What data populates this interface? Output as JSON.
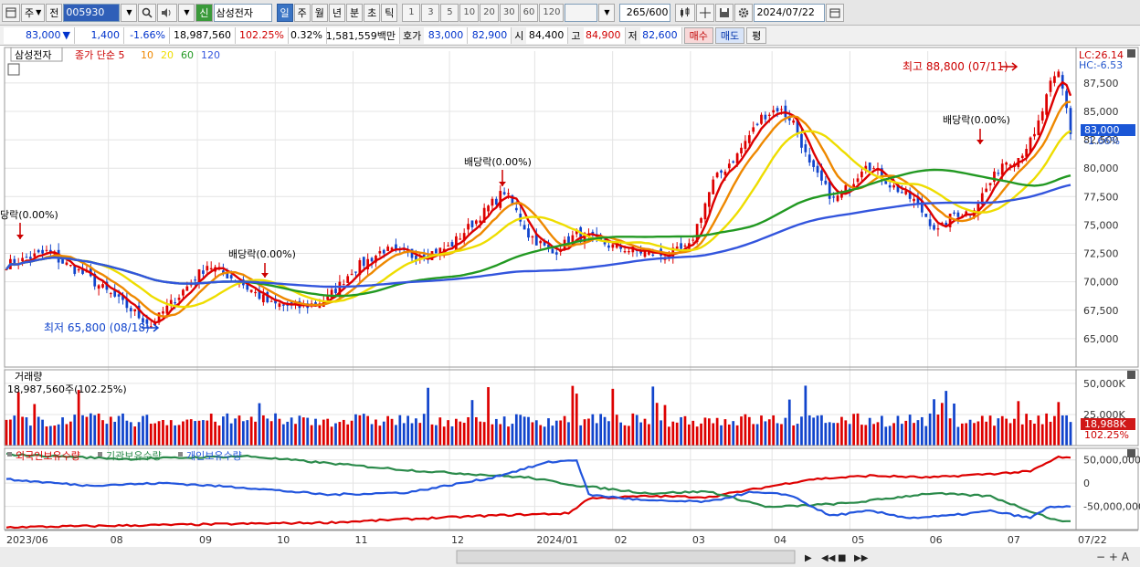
{
  "toolbar": {
    "period_type": "주",
    "prev_label": "전",
    "stock_code": "005930",
    "new_badge": "신",
    "stock_name": "삼성전자",
    "period_tabs": [
      "일",
      "주",
      "월",
      "년",
      "분",
      "초",
      "틱"
    ],
    "selected_period": "일",
    "intervals": [
      "1",
      "3",
      "5",
      "10",
      "20",
      "30",
      "60",
      "120"
    ],
    "count_value": "265",
    "count_max": "/600",
    "date_value": "2024/07/22"
  },
  "info": {
    "price": "83,000",
    "change": "1,400",
    "change_pct": "-1.66%",
    "volume": "18,987,560",
    "vol_ratio": "102.25%",
    "turnover": "0.32%",
    "amount": "1,581,559백만",
    "quote_label": "호가",
    "ask": "83,000",
    "bid": "82,900",
    "open_label": "시",
    "open": "84,400",
    "high_label": "고",
    "high": "84,900",
    "low_label": "저",
    "low": "82,600",
    "buy_label": "매수",
    "sell_label": "매도",
    "eval_label": "평"
  },
  "chart_data": {
    "type": "candlestick",
    "price_panel": {
      "title": "삼성전자",
      "legend_prefix": "종가 단순",
      "ma_periods": [
        "5",
        "10",
        "20",
        "60",
        "120"
      ],
      "ma_colors": [
        "#dd0000",
        "#ee8800",
        "#eedd00",
        "#229922",
        "#3355dd"
      ],
      "corner_lc": "LC:26.14",
      "corner_hc": "HC:-6.53",
      "yticks": [
        "87,500",
        "85,000",
        "82,500",
        "80,000",
        "77,500",
        "75,000",
        "72,500",
        "70,000",
        "67,500",
        "65,000"
      ],
      "ytick_values": [
        87500,
        85000,
        82500,
        80000,
        77500,
        75000,
        72500,
        70000,
        67500,
        65000
      ],
      "ylim": [
        62500,
        90300
      ],
      "current_price": "83,000",
      "current_pct": "-1.66%",
      "annotations": {
        "high": "최고 88,800 (07/11)",
        "low": "최저 65,800 (08/18)",
        "div1": "당락(0.00%)",
        "div2": "배당락(0.00%)",
        "div3": "배당락(0.00%)",
        "div4": "배당락(0.00%)"
      },
      "close_anchors": [
        [
          0,
          71500
        ],
        [
          10,
          72600
        ],
        [
          20,
          70500
        ],
        [
          30,
          67800
        ],
        [
          36,
          66200
        ],
        [
          44,
          69200
        ],
        [
          50,
          71500
        ],
        [
          58,
          70000
        ],
        [
          66,
          68000
        ],
        [
          74,
          67800
        ],
        [
          80,
          68500
        ],
        [
          86,
          71000
        ],
        [
          94,
          72800
        ],
        [
          102,
          72200
        ],
        [
          110,
          73000
        ],
        [
          118,
          75800
        ],
        [
          124,
          78000
        ],
        [
          130,
          74200
        ],
        [
          136,
          72500
        ],
        [
          142,
          74200
        ],
        [
          150,
          73200
        ],
        [
          158,
          72600
        ],
        [
          164,
          72300
        ],
        [
          170,
          73000
        ],
        [
          176,
          78800
        ],
        [
          182,
          81200
        ],
        [
          188,
          84500
        ],
        [
          192,
          85300
        ],
        [
          196,
          84100
        ],
        [
          200,
          80200
        ],
        [
          206,
          77200
        ],
        [
          210,
          78400
        ],
        [
          214,
          80600
        ],
        [
          220,
          78600
        ],
        [
          226,
          77100
        ],
        [
          232,
          74400
        ],
        [
          236,
          76000
        ],
        [
          240,
          76200
        ],
        [
          244,
          78100
        ],
        [
          248,
          80500
        ],
        [
          252,
          81000
        ],
        [
          256,
          82800
        ],
        [
          260,
          87300
        ],
        [
          262,
          88400
        ],
        [
          264,
          85400
        ],
        [
          265,
          83000
        ]
      ]
    },
    "volume_panel": {
      "title": "거래량",
      "value_label": "18,987,560주(102.25%)",
      "yticks": [
        "50,000K",
        "25,000K"
      ],
      "ytick_values": [
        50000,
        25000
      ],
      "ymax": 58000,
      "current": "18,988K",
      "current_pct": "102.25%"
    },
    "holdings_panel": {
      "series": [
        {
          "name": "외국인보유수량",
          "color": "#dd0000",
          "anchors": [
            [
              0,
              -95
            ],
            [
              40,
              -90
            ],
            [
              80,
              -85
            ],
            [
              120,
              -70
            ],
            [
              140,
              -65
            ],
            [
              145,
              -33
            ],
            [
              160,
              -28
            ],
            [
              175,
              -30
            ],
            [
              200,
              8
            ],
            [
              215,
              16
            ],
            [
              230,
              12
            ],
            [
              245,
              20
            ],
            [
              255,
              25
            ],
            [
              262,
              56
            ],
            [
              265,
              54
            ]
          ]
        },
        {
          "name": "기관보유수량",
          "color": "#2a8a4a",
          "anchors": [
            [
              0,
              62
            ],
            [
              30,
              52
            ],
            [
              60,
              58
            ],
            [
              100,
              28
            ],
            [
              130,
              12
            ],
            [
              142,
              -5
            ],
            [
              160,
              -22
            ],
            [
              175,
              -18
            ],
            [
              190,
              -52
            ],
            [
              210,
              -43
            ],
            [
              230,
              -22
            ],
            [
              245,
              -28
            ],
            [
              255,
              -60
            ],
            [
              262,
              -82
            ],
            [
              265,
              -80
            ]
          ]
        },
        {
          "name": "개인보유수량",
          "color": "#2255dd",
          "anchors": [
            [
              0,
              8
            ],
            [
              20,
              -5
            ],
            [
              40,
              0
            ],
            [
              60,
              -10
            ],
            [
              80,
              -25
            ],
            [
              100,
              -20
            ],
            [
              120,
              10
            ],
            [
              135,
              45
            ],
            [
              142,
              50
            ],
            [
              145,
              -25
            ],
            [
              160,
              -38
            ],
            [
              175,
              -40
            ],
            [
              185,
              -20
            ],
            [
              195,
              -25
            ],
            [
              205,
              -70
            ],
            [
              215,
              -60
            ],
            [
              225,
              -75
            ],
            [
              235,
              -70
            ],
            [
              245,
              -60
            ],
            [
              255,
              -75
            ],
            [
              260,
              -50
            ],
            [
              265,
              -52
            ]
          ]
        }
      ],
      "yticks": [
        "50,000,000",
        "0",
        "-50,000,000"
      ],
      "ytick_values": [
        50,
        0,
        -50
      ],
      "ylim": [
        -100,
        75
      ]
    },
    "x_axis": {
      "labels": [
        "2023/06",
        "08",
        "09",
        "10",
        "11",
        "12",
        "2024/01",
        "02",
        "03",
        "04",
        "05",
        "06",
        "07",
        "07/22"
      ],
      "label_index": [
        0,
        28,
        52,
        73,
        94,
        120,
        143,
        164,
        185,
        207,
        228,
        249,
        270,
        289
      ]
    }
  }
}
